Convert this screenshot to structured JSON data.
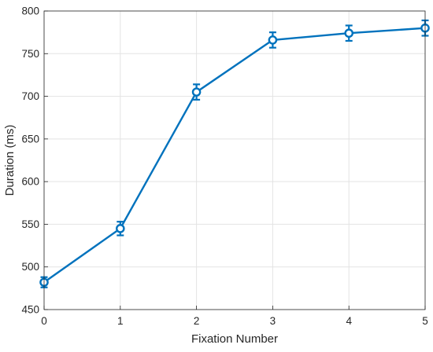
{
  "chart_data": {
    "type": "line",
    "title": "",
    "xlabel": "Fixation Number",
    "ylabel": "Duration (ms)",
    "xlim": [
      0,
      5
    ],
    "ylim": [
      450,
      800
    ],
    "xticks": [
      0,
      1,
      2,
      3,
      4,
      5
    ],
    "yticks": [
      450,
      500,
      550,
      600,
      650,
      700,
      750,
      800
    ],
    "grid": true,
    "legend": "none",
    "series": [
      {
        "color": "#0072BD",
        "marker": "circle",
        "x": [
          0,
          1,
          2,
          3,
          4,
          5
        ],
        "y": [
          482,
          545,
          705,
          766,
          774,
          780
        ],
        "error": [
          6,
          8,
          9,
          9,
          9,
          9
        ]
      }
    ]
  }
}
